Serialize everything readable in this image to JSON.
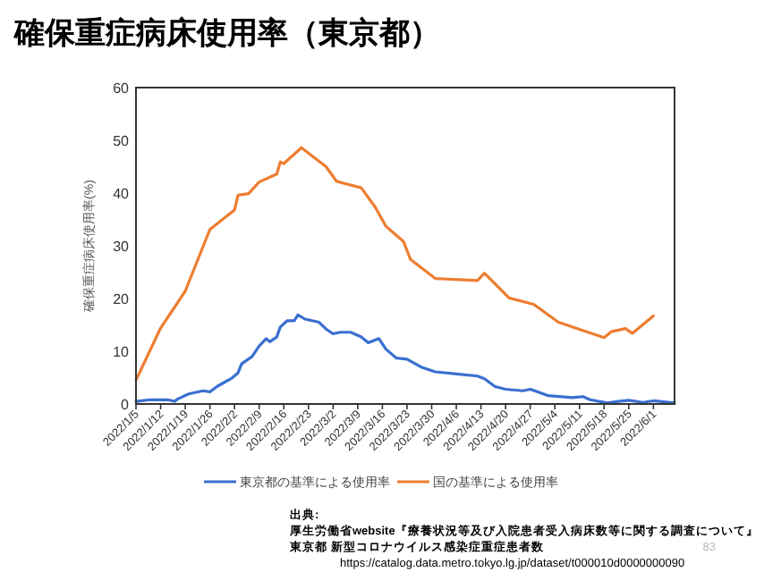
{
  "chart_data": {
    "type": "line",
    "title": "確保重症病床使用率（東京都）",
    "ylabel": "確保重症病床使用率(%)",
    "xlim": [
      "2022-01-05",
      "2022-06-07"
    ],
    "ylim": [
      0,
      60
    ],
    "yticks": [
      0,
      10,
      20,
      30,
      40,
      50,
      60
    ],
    "xticks": [
      {
        "value": "2022-01-05",
        "label": "2022/1/5"
      },
      {
        "value": "2022-01-12",
        "label": "2022/1/12"
      },
      {
        "value": "2022-01-19",
        "label": "2022/1/19"
      },
      {
        "value": "2022-01-26",
        "label": "2022/1/26"
      },
      {
        "value": "2022-02-02",
        "label": "2022/2/2"
      },
      {
        "value": "2022-02-09",
        "label": "2022/2/9"
      },
      {
        "value": "2022-02-16",
        "label": "2022/2/16"
      },
      {
        "value": "2022-02-23",
        "label": "2022/2/23"
      },
      {
        "value": "2022-03-02",
        "label": "2022/3/2"
      },
      {
        "value": "2022-03-09",
        "label": "2022/3/9"
      },
      {
        "value": "2022-03-16",
        "label": "2022/3/16"
      },
      {
        "value": "2022-03-23",
        "label": "2022/3/23"
      },
      {
        "value": "2022-03-30",
        "label": "2022/3/30"
      },
      {
        "value": "2022-04-06",
        "label": "2022/4/6"
      },
      {
        "value": "2022-04-13",
        "label": "2022/4/13"
      },
      {
        "value": "2022-04-20",
        "label": "2022/4/20"
      },
      {
        "value": "2022-04-27",
        "label": "2022/4/27"
      },
      {
        "value": "2022-05-04",
        "label": "2022/5/4"
      },
      {
        "value": "2022-05-11",
        "label": "2022/5/11"
      },
      {
        "value": "2022-05-18",
        "label": "2022/5/18"
      },
      {
        "value": "2022-05-25",
        "label": "2022/5/25"
      },
      {
        "value": "2022-06-01",
        "label": "2022/6/1"
      }
    ],
    "grid": false,
    "legend": "bottom",
    "marker": "none",
    "line_style": "solid",
    "series": [
      {
        "name": "東京都の基準による使用率",
        "color": "#3a6fd0",
        "x": [
          "2022-01-05",
          "2022-01-09",
          "2022-01-14",
          "2022-01-16",
          "2022-01-17",
          "2022-01-20",
          "2022-01-24",
          "2022-01-26",
          "2022-01-28",
          "2022-02-01",
          "2022-02-03",
          "2022-02-04",
          "2022-02-07",
          "2022-02-09",
          "2022-02-11",
          "2022-02-12",
          "2022-02-14",
          "2022-02-15",
          "2022-02-17",
          "2022-02-19",
          "2022-02-20",
          "2022-02-22",
          "2022-02-26",
          "2022-02-28",
          "2022-03-02",
          "2022-03-04",
          "2022-03-07",
          "2022-03-10",
          "2022-03-12",
          "2022-03-15",
          "2022-03-17",
          "2022-03-20",
          "2022-03-23",
          "2022-03-27",
          "2022-03-31",
          "2022-04-06",
          "2022-04-12",
          "2022-04-14",
          "2022-04-17",
          "2022-04-20",
          "2022-04-25",
          "2022-04-27",
          "2022-05-02",
          "2022-05-09",
          "2022-05-12",
          "2022-05-14",
          "2022-05-19",
          "2022-05-22",
          "2022-05-25",
          "2022-05-29",
          "2022-06-01",
          "2022-06-07"
        ],
        "values": [
          0.5,
          0.8,
          0.8,
          0.5,
          1.0,
          1.9,
          2.5,
          2.3,
          3.3,
          4.8,
          5.9,
          7.6,
          9.0,
          11.0,
          12.4,
          11.8,
          12.7,
          14.6,
          15.8,
          15.8,
          16.9,
          16.1,
          15.5,
          14.2,
          13.3,
          13.6,
          13.6,
          12.7,
          11.6,
          12.4,
          10.4,
          8.7,
          8.5,
          7.0,
          6.1,
          5.7,
          5.3,
          4.8,
          3.3,
          2.8,
          2.5,
          2.8,
          1.6,
          1.2,
          1.4,
          0.8,
          0.2,
          0.5,
          0.7,
          0.3,
          0.6,
          0.2
        ]
      },
      {
        "name": "国の基準による使用率",
        "color": "#ed7d31",
        "x": [
          "2022-01-05",
          "2022-01-12",
          "2022-01-19",
          "2022-01-26",
          "2022-02-02",
          "2022-02-03",
          "2022-02-06",
          "2022-02-09",
          "2022-02-14",
          "2022-02-15",
          "2022-02-16",
          "2022-02-21",
          "2022-02-28",
          "2022-03-03",
          "2022-03-10",
          "2022-03-14",
          "2022-03-17",
          "2022-03-22",
          "2022-03-24",
          "2022-03-31",
          "2022-04-12",
          "2022-04-14",
          "2022-04-21",
          "2022-04-28",
          "2022-05-05",
          "2022-05-18",
          "2022-05-20",
          "2022-05-24",
          "2022-05-26",
          "2022-06-01"
        ],
        "values": [
          4.5,
          14.4,
          21.4,
          33.1,
          36.8,
          39.6,
          39.9,
          42.1,
          43.6,
          45.9,
          45.6,
          48.6,
          45.0,
          42.2,
          41.0,
          37.3,
          33.7,
          30.8,
          27.4,
          23.8,
          23.4,
          24.8,
          20.1,
          18.9,
          15.5,
          12.6,
          13.7,
          14.3,
          13.4,
          16.7
        ]
      }
    ],
    "annotations": [
      "83",
      "出典:",
      "厚生労働省website『療養状況等及び入院患者受入病床数等に関する調査について』",
      "東京都 新型コロナウイルス感染症重症患者数",
      "https://catalog.data.metro.tokyo.lg.jp/dataset/t000010d0000000090"
    ]
  }
}
